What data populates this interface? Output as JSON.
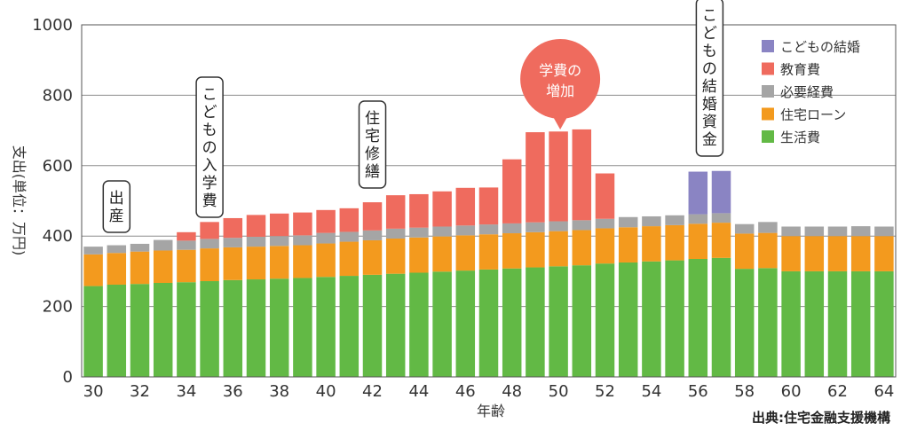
{
  "chart_data": {
    "type": "bar",
    "stacked": true,
    "ylabel": "支出(単位：万円)",
    "xlabel": "年齢",
    "source": "出典:住宅金融支援機構",
    "ylim": [
      0,
      1000
    ],
    "yticks": [
      "0",
      "200",
      "400",
      "600",
      "800",
      "1000"
    ],
    "grid": true,
    "legend_position": "top-right",
    "x": [
      30,
      31,
      32,
      33,
      34,
      35,
      36,
      37,
      38,
      39,
      40,
      41,
      42,
      43,
      44,
      45,
      46,
      47,
      48,
      49,
      50,
      51,
      52,
      53,
      54,
      55,
      56,
      57,
      58,
      59,
      60,
      61,
      62,
      63,
      64
    ],
    "xticks": [
      "30",
      "32",
      "34",
      "36",
      "38",
      "40",
      "42",
      "44",
      "46",
      "48",
      "50",
      "52",
      "54",
      "56",
      "58",
      "60",
      "62",
      "64"
    ],
    "series": [
      {
        "name": "生活費",
        "color": "#62b945",
        "values": [
          258,
          262,
          264,
          267,
          269,
          272,
          275,
          277,
          279,
          281,
          284,
          287,
          290,
          293,
          296,
          299,
          302,
          305,
          308,
          311,
          314,
          317,
          322,
          325,
          328,
          331,
          335,
          338,
          307,
          309,
          300,
          300,
          300,
          300,
          300
        ]
      },
      {
        "name": "住宅ローン",
        "color": "#f39a1e",
        "values": [
          90,
          90,
          92,
          92,
          92,
          93,
          93,
          93,
          93,
          93,
          95,
          97,
          98,
          100,
          100,
          100,
          100,
          100,
          100,
          100,
          100,
          100,
          100,
          100,
          100,
          100,
          100,
          100,
          100,
          100,
          100,
          100,
          100,
          100,
          100
        ]
      },
      {
        "name": "必要経費",
        "color": "#a5a5a5",
        "values": [
          22,
          22,
          22,
          30,
          26,
          27,
          27,
          28,
          28,
          28,
          30,
          28,
          28,
          28,
          28,
          28,
          28,
          28,
          28,
          28,
          28,
          28,
          27,
          29,
          28,
          28,
          27,
          27,
          27,
          31,
          27,
          27,
          27,
          28,
          27
        ]
      },
      {
        "name": "教育費",
        "color": "#ef6b5e",
        "values": [
          0,
          0,
          0,
          0,
          24,
          48,
          56,
          62,
          64,
          65,
          65,
          67,
          80,
          95,
          95,
          100,
          107,
          105,
          182,
          256,
          255,
          258,
          129,
          0,
          0,
          0,
          0,
          0,
          0,
          0,
          0,
          0,
          0,
          0,
          0
        ]
      },
      {
        "name": "こどもの結婚",
        "color": "#8a84c3",
        "values": [
          0,
          0,
          0,
          0,
          0,
          0,
          0,
          0,
          0,
          0,
          0,
          0,
          0,
          0,
          0,
          0,
          0,
          0,
          0,
          0,
          0,
          0,
          0,
          0,
          0,
          0,
          121,
          120,
          0,
          0,
          0,
          0,
          0,
          0,
          0
        ]
      }
    ],
    "legend_order": [
      "こどもの結婚",
      "教育費",
      "必要経費",
      "住宅ローン",
      "生活費"
    ],
    "annotations": [
      {
        "id": "birth",
        "text": "出産",
        "age": 31
      },
      {
        "id": "school",
        "text": "こどもの入学費",
        "age": 35
      },
      {
        "id": "repair",
        "text": "住宅修繕",
        "age": 42
      },
      {
        "id": "tuition",
        "text": "学費の増加",
        "age": 50,
        "style": "bubble"
      },
      {
        "id": "wedding",
        "text": "こどもの結婚資金",
        "age": 56.5
      }
    ]
  }
}
